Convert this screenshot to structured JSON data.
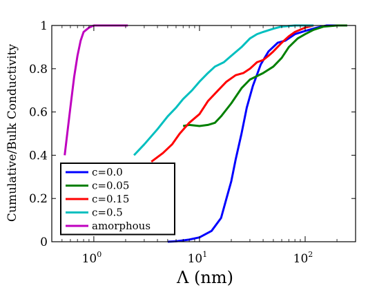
{
  "chart_data": {
    "type": "line",
    "xlabel": "Λ (nm)",
    "ylabel": "Cumulative/Bulk Conductivity",
    "x_scale": "log",
    "xlim": [
      0.4,
      300
    ],
    "ylim": [
      0,
      1
    ],
    "x_ticks": [
      {
        "value": 1,
        "base": "10",
        "exp": "0"
      },
      {
        "value": 10,
        "base": "10",
        "exp": "1"
      },
      {
        "value": 100,
        "base": "10",
        "exp": "2"
      }
    ],
    "y_ticks": [
      {
        "value": 0,
        "label": "0"
      },
      {
        "value": 0.2,
        "label": "0.2"
      },
      {
        "value": 0.4,
        "label": "0.4"
      },
      {
        "value": 0.6,
        "label": "0.6"
      },
      {
        "value": 0.8,
        "label": "0.8"
      },
      {
        "value": 1,
        "label": "1"
      }
    ],
    "grid": false,
    "legend_position": "lower-left",
    "series": [
      {
        "name": "c=0.0",
        "color": "#0000ff",
        "points": [
          [
            5,
            0
          ],
          [
            6,
            0.002
          ],
          [
            8,
            0.01
          ],
          [
            10,
            0.02
          ],
          [
            13,
            0.05
          ],
          [
            16,
            0.11
          ],
          [
            18,
            0.2
          ],
          [
            20,
            0.28
          ],
          [
            22,
            0.38
          ],
          [
            25,
            0.5
          ],
          [
            28,
            0.62
          ],
          [
            32,
            0.72
          ],
          [
            38,
            0.82
          ],
          [
            45,
            0.88
          ],
          [
            55,
            0.92
          ],
          [
            65,
            0.93
          ],
          [
            80,
            0.96
          ],
          [
            100,
            0.975
          ],
          [
            130,
            0.99
          ],
          [
            160,
            1.0
          ],
          [
            200,
            1.0
          ]
        ]
      },
      {
        "name": "c=0.05",
        "color": "#008000",
        "points": [
          [
            7,
            0.535
          ],
          [
            8,
            0.54
          ],
          [
            10,
            0.535
          ],
          [
            12,
            0.54
          ],
          [
            14,
            0.55
          ],
          [
            16,
            0.58
          ],
          [
            20,
            0.64
          ],
          [
            25,
            0.71
          ],
          [
            30,
            0.75
          ],
          [
            40,
            0.78
          ],
          [
            50,
            0.81
          ],
          [
            60,
            0.85
          ],
          [
            70,
            0.9
          ],
          [
            85,
            0.94
          ],
          [
            100,
            0.96
          ],
          [
            120,
            0.98
          ],
          [
            150,
            0.995
          ],
          [
            200,
            1.0
          ],
          [
            250,
            1.0
          ]
        ]
      },
      {
        "name": "c=0.15",
        "color": "#ff0000",
        "points": [
          [
            3.5,
            0.37
          ],
          [
            4.5,
            0.41
          ],
          [
            5.5,
            0.45
          ],
          [
            6.5,
            0.5
          ],
          [
            8,
            0.55
          ],
          [
            10,
            0.59
          ],
          [
            12,
            0.65
          ],
          [
            15,
            0.7
          ],
          [
            18,
            0.74
          ],
          [
            22,
            0.77
          ],
          [
            26,
            0.78
          ],
          [
            30,
            0.8
          ],
          [
            35,
            0.83
          ],
          [
            40,
            0.84
          ],
          [
            45,
            0.86
          ],
          [
            50,
            0.88
          ],
          [
            60,
            0.92
          ],
          [
            70,
            0.95
          ],
          [
            80,
            0.97
          ],
          [
            100,
            0.99
          ],
          [
            120,
            1.0
          ]
        ]
      },
      {
        "name": "c=0.5",
        "color": "#00bfbf",
        "points": [
          [
            2.4,
            0.4
          ],
          [
            3,
            0.45
          ],
          [
            4,
            0.52
          ],
          [
            5,
            0.58
          ],
          [
            6,
            0.62
          ],
          [
            7,
            0.66
          ],
          [
            8.5,
            0.7
          ],
          [
            10,
            0.74
          ],
          [
            12,
            0.78
          ],
          [
            14,
            0.81
          ],
          [
            17,
            0.83
          ],
          [
            20,
            0.86
          ],
          [
            25,
            0.9
          ],
          [
            30,
            0.94
          ],
          [
            35,
            0.96
          ],
          [
            40,
            0.97
          ],
          [
            50,
            0.985
          ],
          [
            60,
            0.995
          ],
          [
            80,
            1.0
          ],
          [
            120,
            1.0
          ]
        ]
      },
      {
        "name": "amorphous",
        "color": "#bf00bf",
        "points": [
          [
            0.53,
            0.4
          ],
          [
            0.56,
            0.5
          ],
          [
            0.6,
            0.62
          ],
          [
            0.65,
            0.76
          ],
          [
            0.7,
            0.86
          ],
          [
            0.75,
            0.93
          ],
          [
            0.8,
            0.97
          ],
          [
            0.9,
            0.99
          ],
          [
            1.0,
            1.0
          ],
          [
            1.5,
            1.0
          ],
          [
            2.1,
            1.0
          ]
        ]
      }
    ]
  }
}
